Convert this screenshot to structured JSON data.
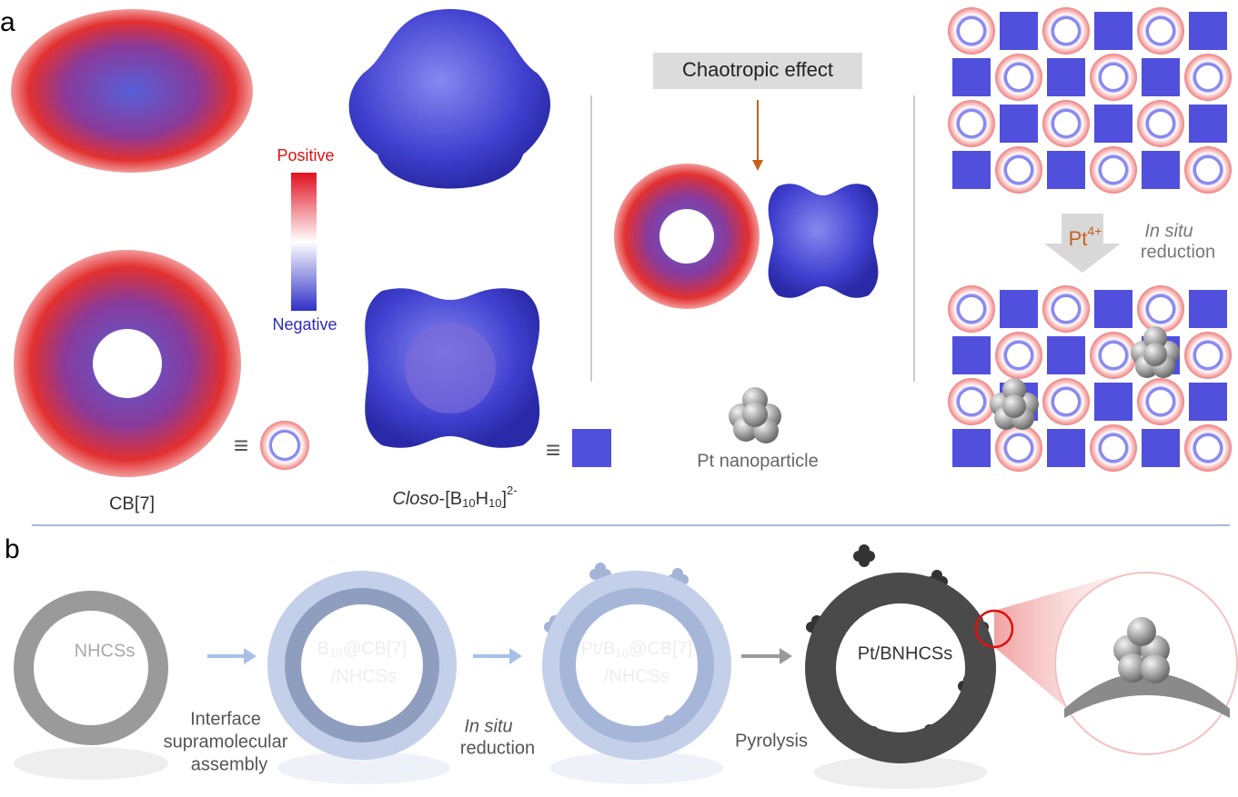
{
  "panel_a": {
    "label": "a",
    "colorbar": {
      "positive": "Positive",
      "negative": "Negative"
    },
    "cb7_label": "CB[7]",
    "closo_label": {
      "italic": "Closo",
      "part1": "-[B",
      "sub1": "10",
      "part2": "H",
      "sub2": "10",
      "part3": "]",
      "sup": "2-"
    },
    "chaotropic": "Chaotropic effect",
    "pt_nanoparticle": "Pt nanoparticle",
    "arrow_label": {
      "base": "Pt",
      "charge": "4+"
    },
    "in_situ": "In situ",
    "reduction": "reduction"
  },
  "panel_b": {
    "label": "b",
    "ring1": "NHCSs",
    "ring2": {
      "part1": "B",
      "sub": "10",
      "part2": "@CB[7]",
      "line2": "/NHCSs"
    },
    "ring3": {
      "part1": "Pt/B",
      "sub": "10",
      "part2": "@CB[7]",
      "line2": "/NHCSs"
    },
    "ring4": "Pt/BNHCSs",
    "step1": [
      "Interface",
      "supramolecular",
      "assembly"
    ],
    "step2": {
      "italic": "In situ",
      "line2": "reduction"
    },
    "step3": "Pyrolysis"
  }
}
